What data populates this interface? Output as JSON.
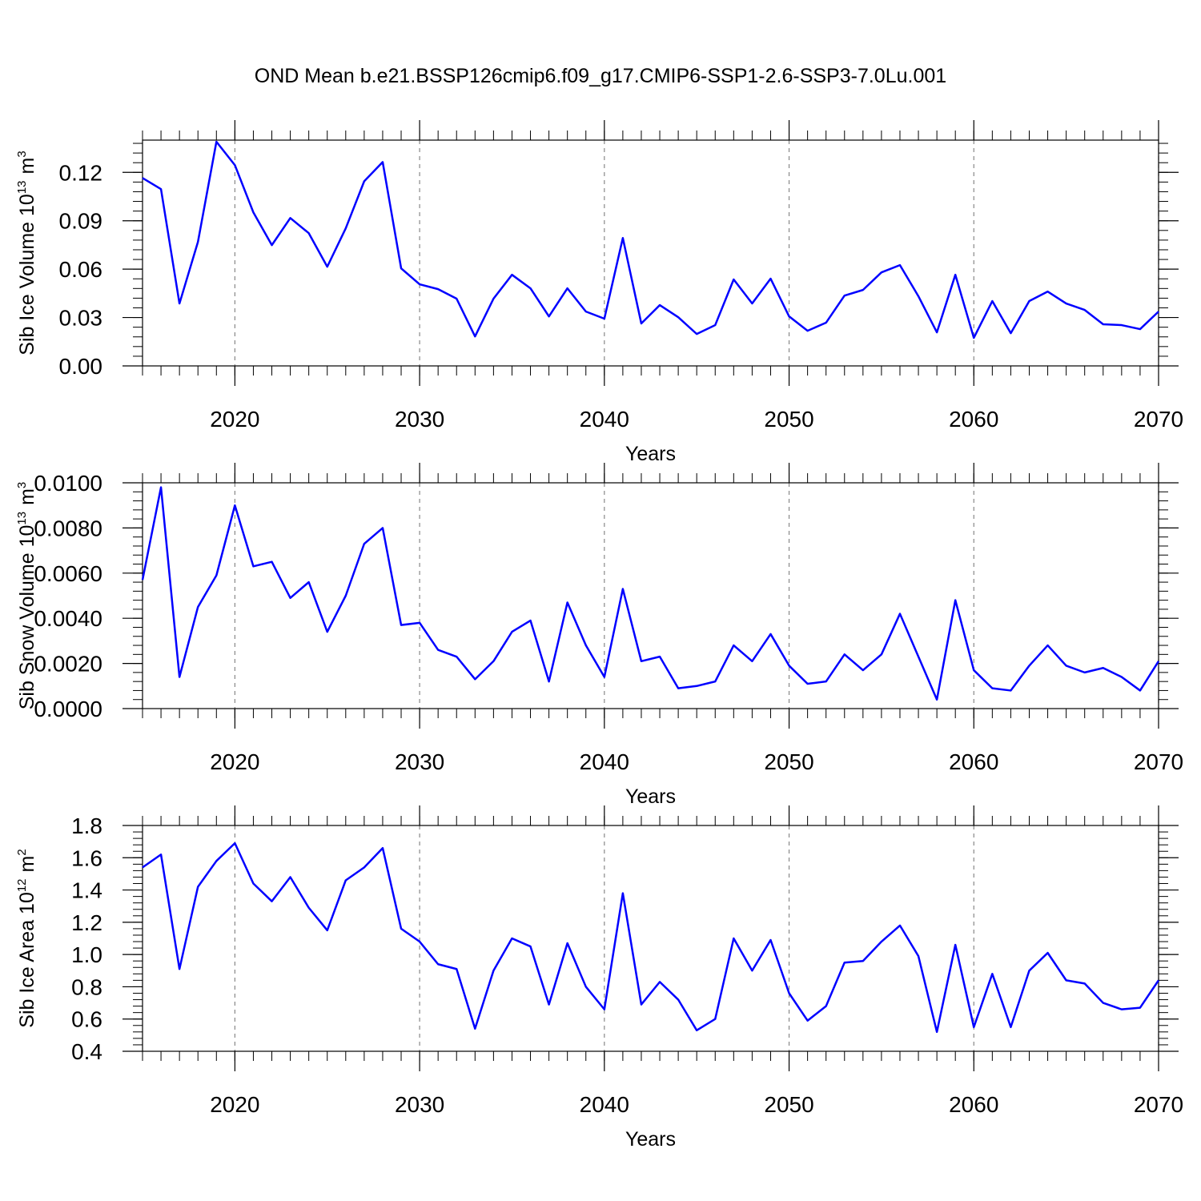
{
  "title": "OND Mean b.e21.BSSP126cmip6.f09_g17.CMIP6-SSP1-2.6-SSP3-7.0Lu.001",
  "chart_data": [
    {
      "type": "line",
      "xlabel": "Years",
      "ylabel": [
        "Sib Ice Volume 10",
        "13",
        "m",
        "3"
      ],
      "color": "#0000ff",
      "grid": true,
      "x": [
        2015,
        2016,
        2017,
        2018,
        2019,
        2020,
        2021,
        2022,
        2023,
        2024,
        2025,
        2026,
        2027,
        2028,
        2029,
        2030,
        2031,
        2032,
        2033,
        2034,
        2035,
        2036,
        2037,
        2038,
        2039,
        2040,
        2041,
        2042,
        2043,
        2044,
        2045,
        2046,
        2047,
        2048,
        2049,
        2050,
        2051,
        2052,
        2053,
        2054,
        2055,
        2056,
        2057,
        2058,
        2059,
        2060,
        2061,
        2062,
        2063,
        2064,
        2065,
        2066,
        2067,
        2068,
        2069,
        2070
      ],
      "values": [
        0.1165,
        0.1096,
        0.0387,
        0.0769,
        0.139,
        0.1245,
        0.0952,
        0.0749,
        0.0917,
        0.0823,
        0.0615,
        0.0853,
        0.1145,
        0.1264,
        0.0605,
        0.0506,
        0.0476,
        0.0417,
        0.0183,
        0.0417,
        0.0565,
        0.0481,
        0.0307,
        0.0481,
        0.0337,
        0.0293,
        0.0793,
        0.0263,
        0.0377,
        0.0302,
        0.0198,
        0.0253,
        0.0536,
        0.0387,
        0.0541,
        0.0307,
        0.0218,
        0.0268,
        0.0436,
        0.0471,
        0.058,
        0.0625,
        0.0432,
        0.0208,
        0.0565,
        0.0174,
        0.0402,
        0.0203,
        0.0402,
        0.0461,
        0.0387,
        0.0347,
        0.0258,
        0.0253,
        0.0228,
        0.0337
      ],
      "xlim": [
        2015,
        2070
      ],
      "xticks": [
        2020,
        2030,
        2040,
        2050,
        2060,
        2070
      ],
      "ylim": [
        0,
        0.14
      ],
      "yticks": [
        {
          "value": 0,
          "label": "0.00"
        },
        0.03,
        0.06,
        0.09,
        0.12
      ]
    },
    {
      "type": "line",
      "xlabel": "Years",
      "ylabel": [
        "Sib Snow Volume 10",
        "13",
        "m",
        "3"
      ],
      "color": "#0000ff",
      "grid": true,
      "x": [
        2015,
        2016,
        2017,
        2018,
        2019,
        2020,
        2021,
        2022,
        2023,
        2024,
        2025,
        2026,
        2027,
        2028,
        2029,
        2030,
        2031,
        2032,
        2033,
        2034,
        2035,
        2036,
        2037,
        2038,
        2039,
        2040,
        2041,
        2042,
        2043,
        2044,
        2045,
        2046,
        2047,
        2048,
        2049,
        2050,
        2051,
        2052,
        2053,
        2054,
        2055,
        2056,
        2057,
        2058,
        2059,
        2060,
        2061,
        2062,
        2063,
        2064,
        2065,
        2066,
        2067,
        2068,
        2069,
        2070
      ],
      "values": [
        0.0057,
        0.0098,
        0.0014,
        0.0045,
        0.0059,
        0.009,
        0.0063,
        0.0065,
        0.0049,
        0.0056,
        0.0034,
        0.005,
        0.0073,
        0.008,
        0.0037,
        0.0038,
        0.0026,
        0.0023,
        0.0013,
        0.0021,
        0.0034,
        0.0039,
        0.0012,
        0.0047,
        0.0028,
        0.0014,
        0.0053,
        0.0021,
        0.0023,
        0.0009,
        0.001,
        0.0012,
        0.0028,
        0.0021,
        0.0033,
        0.0019,
        0.0011,
        0.0012,
        0.0024,
        0.0017,
        0.0024,
        0.0042,
        0.0023,
        0.0004,
        0.0048,
        0.0017,
        0.0009,
        0.0008,
        0.0019,
        0.0028,
        0.0019,
        0.0016,
        0.0018,
        0.0014,
        0.0008,
        0.0021
      ],
      "xlim": [
        2015,
        2070
      ],
      "xticks": [
        2020,
        2030,
        2040,
        2050,
        2060,
        2070
      ],
      "ylim": [
        0,
        0.01
      ],
      "yticks": [
        {
          "value": 0,
          "label": "0.0000"
        },
        {
          "value": 0.002,
          "label": "0.0020"
        },
        {
          "value": 0.004,
          "label": "0.0040"
        },
        {
          "value": 0.006,
          "label": "0.0060"
        },
        {
          "value": 0.008,
          "label": "0.0080"
        },
        {
          "value": 0.01,
          "label": "0.0100"
        }
      ]
    },
    {
      "type": "line",
      "xlabel": "Years",
      "ylabel": [
        "Sib Ice Area 10",
        "12",
        "m",
        "2"
      ],
      "color": "#0000ff",
      "grid": true,
      "x": [
        2015,
        2016,
        2017,
        2018,
        2019,
        2020,
        2021,
        2022,
        2023,
        2024,
        2025,
        2026,
        2027,
        2028,
        2029,
        2030,
        2031,
        2032,
        2033,
        2034,
        2035,
        2036,
        2037,
        2038,
        2039,
        2040,
        2041,
        2042,
        2043,
        2044,
        2045,
        2046,
        2047,
        2048,
        2049,
        2050,
        2051,
        2052,
        2053,
        2054,
        2055,
        2056,
        2057,
        2058,
        2059,
        2060,
        2061,
        2062,
        2063,
        2064,
        2065,
        2066,
        2067,
        2068,
        2069,
        2070
      ],
      "values": [
        1.54,
        1.62,
        0.91,
        1.42,
        1.58,
        1.69,
        1.44,
        1.33,
        1.48,
        1.29,
        1.15,
        1.46,
        1.54,
        1.66,
        1.16,
        1.08,
        0.94,
        0.91,
        0.54,
        0.9,
        1.1,
        1.05,
        0.69,
        1.07,
        0.8,
        0.66,
        1.38,
        0.69,
        0.83,
        0.72,
        0.53,
        0.6,
        1.1,
        0.9,
        1.09,
        0.76,
        0.59,
        0.68,
        0.95,
        0.96,
        1.08,
        1.18,
        0.99,
        0.52,
        1.06,
        0.55,
        0.88,
        0.55,
        0.9,
        1.01,
        0.84,
        0.82,
        0.7,
        0.66,
        0.67,
        0.84
      ],
      "xlim": [
        2015,
        2070
      ],
      "xticks": [
        2020,
        2030,
        2040,
        2050,
        2060,
        2070
      ],
      "ylim": [
        0.4,
        1.8
      ],
      "yticks": [
        0.4,
        0.6,
        0.8,
        {
          "value": 1,
          "label": "1.0"
        },
        1.2,
        1.4,
        1.6,
        1.8
      ]
    }
  ]
}
